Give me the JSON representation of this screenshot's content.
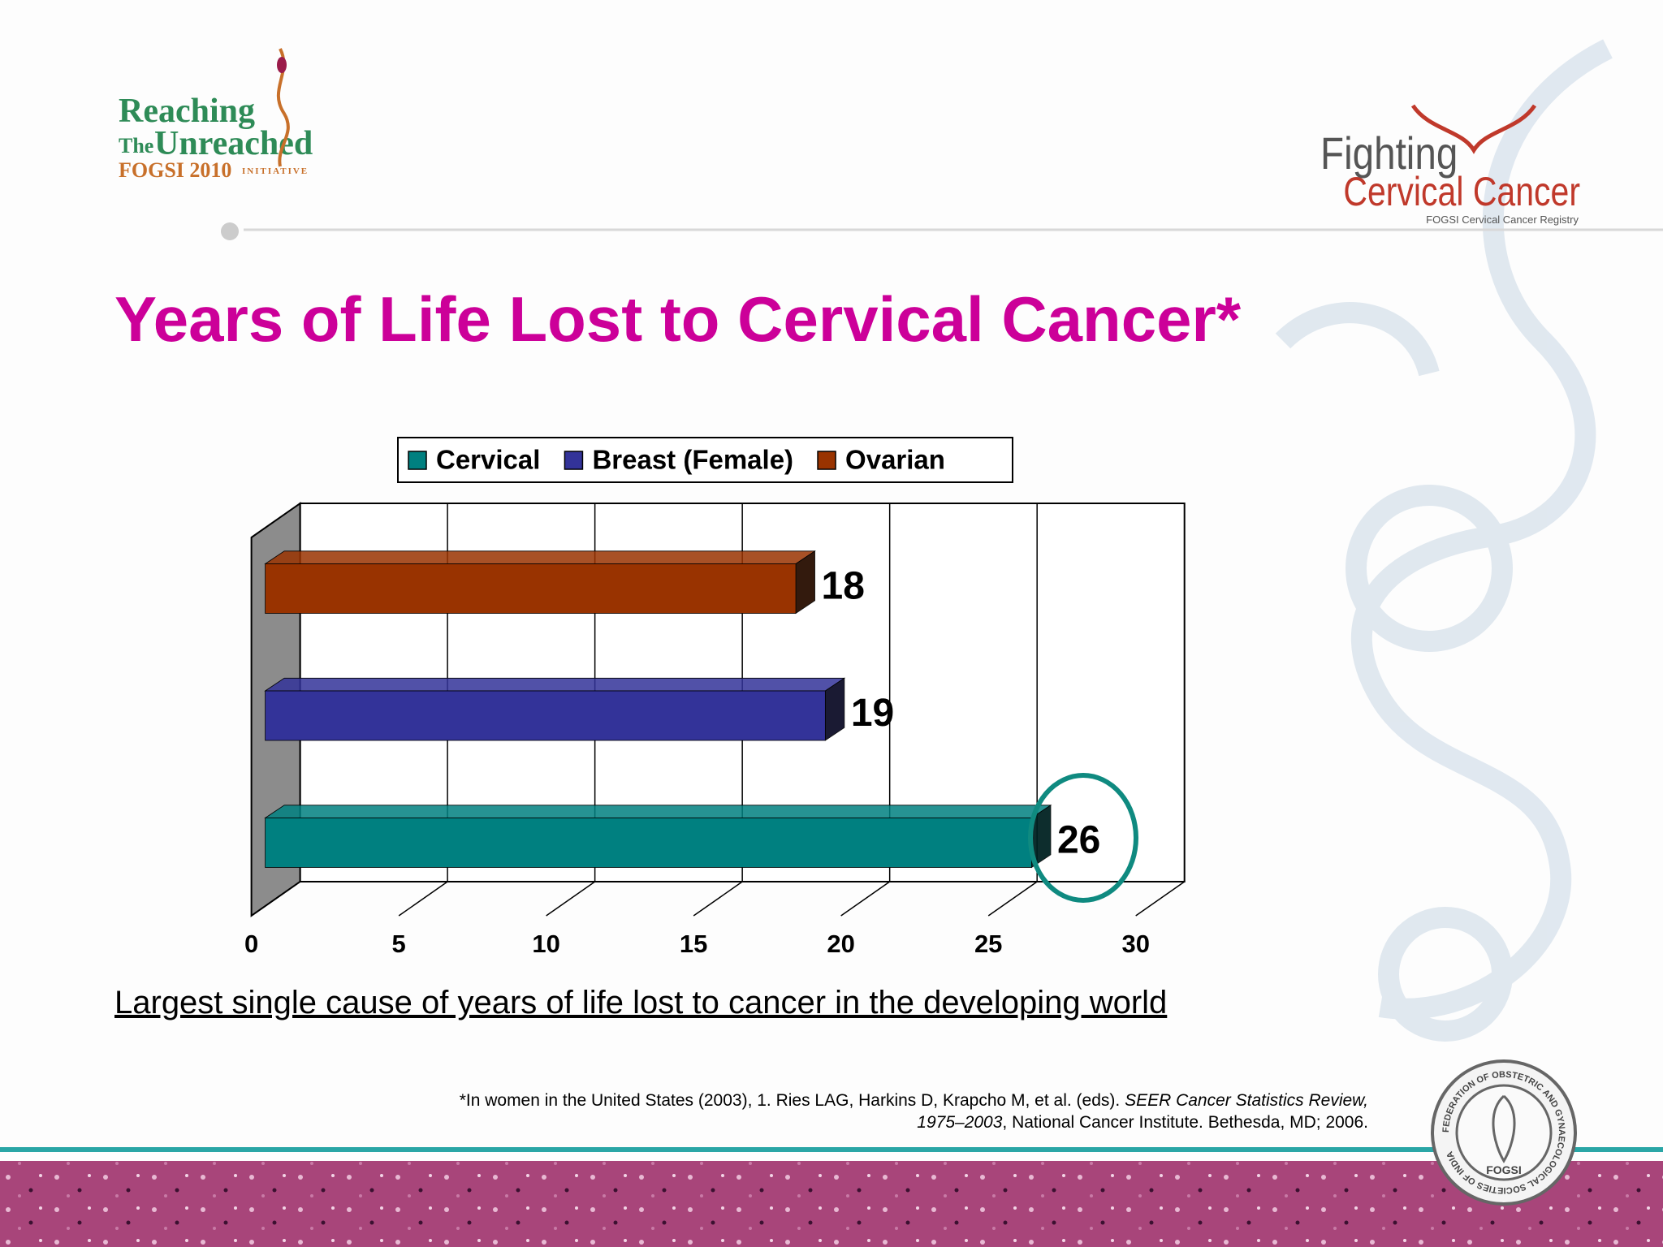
{
  "header": {
    "left_logo": {
      "line1": "Reaching",
      "line2": "The",
      "line3": "Unreached",
      "line4": "FOGSI 2010",
      "line5": "INITIATIVE"
    },
    "right_logo": {
      "line1": "Fighting",
      "line2": "Cervical Cancer",
      "line3": "FOGSI Cervical Cancer Registry"
    },
    "title": "Years of Life Lost to Cervical Cancer*"
  },
  "chart_data": {
    "type": "bar",
    "orientation": "horizontal",
    "categories": [
      null
    ],
    "series": [
      {
        "name": "Cervical",
        "color": "#008080",
        "values": [
          26
        ]
      },
      {
        "name": "Breast (Female)",
        "color": "#333399",
        "values": [
          19
        ]
      },
      {
        "name": "Ovarian",
        "color": "#993300",
        "values": [
          18
        ]
      }
    ],
    "xlim": [
      0,
      30
    ],
    "xticks": [
      0,
      5,
      10,
      15,
      20,
      25,
      30
    ],
    "grid": true,
    "legend": "top"
  },
  "caption": "Largest single cause of years of life lost to cancer in the developing world",
  "footnote": {
    "part1": "*In women in the United States (2003), 1. Ries LAG, Harkins D, Krapcho M, et al. (eds). ",
    "part2": "SEER Cancer Statistics Review,",
    "part3": "1975–2003",
    "part4": ", National Cancer Institute. Bethesda, MD; 2006."
  },
  "seal": {
    "ring": "FEDERATION OF OBSTETRIC AND GYNAECOLOGICAL SOCIETIES OF INDIA",
    "center": "FOGSI"
  }
}
